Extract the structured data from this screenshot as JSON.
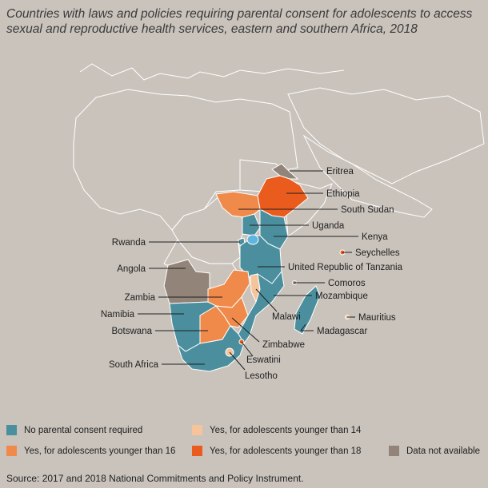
{
  "title": "Countries with laws and policies requiring parental consent for adolescents to access sexual and reproductive health services, eastern and southern Africa, 2018",
  "colors": {
    "none": "#4b8f9e",
    "under14": "#f6c49a",
    "under16": "#f08a4b",
    "under18": "#ea5b1e",
    "na": "#928479",
    "outline": "#ffffff",
    "background": "#c9c3bc",
    "lake": "#62b4e0"
  },
  "legend": [
    {
      "key": "none",
      "label": "No parental consent required"
    },
    {
      "key": "under14",
      "label": "Yes, for adolescents younger than 14"
    },
    {
      "key": "under16",
      "label": "Yes, for adolescents younger than 16"
    },
    {
      "key": "under18",
      "label": "Yes, for adolescents younger than 18"
    },
    {
      "key": "na",
      "label": "Data not available"
    }
  ],
  "countries": [
    {
      "id": "eritrea",
      "label": "Eritrea",
      "category": "na"
    },
    {
      "id": "ethiopia",
      "label": "Ethiopia",
      "category": "under18"
    },
    {
      "id": "south-sudan",
      "label": "South Sudan",
      "category": "under16"
    },
    {
      "id": "uganda",
      "label": "Uganda",
      "category": "none"
    },
    {
      "id": "kenya",
      "label": "Kenya",
      "category": "none"
    },
    {
      "id": "seychelles",
      "label": "Seychelles",
      "category": "under18"
    },
    {
      "id": "rwanda",
      "label": "Rwanda",
      "category": "none"
    },
    {
      "id": "tanzania",
      "label": "United Republic of Tanzania",
      "category": "none"
    },
    {
      "id": "angola",
      "label": "Angola",
      "category": "na"
    },
    {
      "id": "comoros",
      "label": "Comoros",
      "category": "na"
    },
    {
      "id": "zambia",
      "label": "Zambia",
      "category": "under16"
    },
    {
      "id": "mozambique",
      "label": "Mozambique",
      "category": "none"
    },
    {
      "id": "malawi",
      "label": "Malawi",
      "category": "under14"
    },
    {
      "id": "namibia",
      "label": "Namibia",
      "category": "none"
    },
    {
      "id": "mauritius",
      "label": "Mauritius",
      "category": "under14"
    },
    {
      "id": "botswana",
      "label": "Botswana",
      "category": "under16"
    },
    {
      "id": "madagascar",
      "label": "Madagascar",
      "category": "none"
    },
    {
      "id": "zimbabwe",
      "label": "Zimbabwe",
      "category": "under16"
    },
    {
      "id": "eswatini",
      "label": "Eswatini",
      "category": "under18"
    },
    {
      "id": "south-africa",
      "label": "South Africa",
      "category": "none"
    },
    {
      "id": "lesotho",
      "label": "Lesotho",
      "category": "under14"
    }
  ],
  "source": "Source: 2017 and 2018 National Commitments and Policy Instrument."
}
